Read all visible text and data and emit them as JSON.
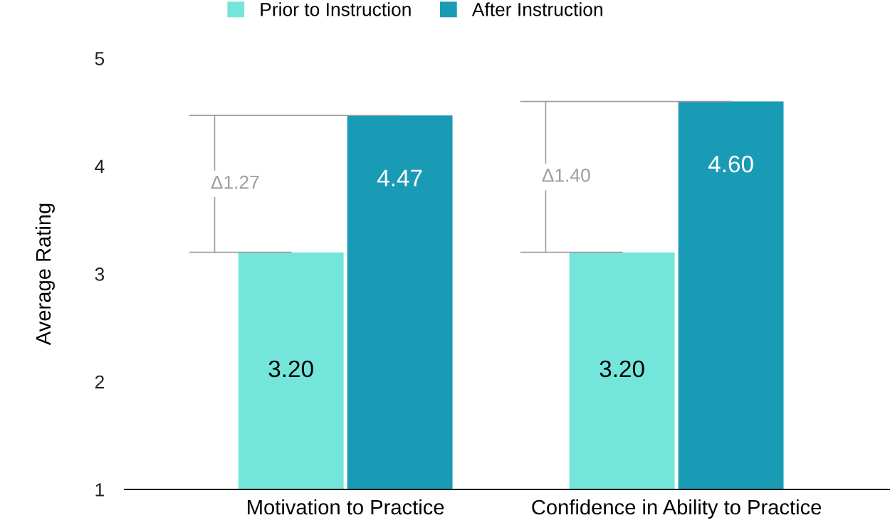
{
  "chart_data": {
    "type": "bar",
    "ylabel": "Average Rating",
    "categories": [
      "Motivation to Practice",
      "Confidence in Ability to Practice"
    ],
    "series": [
      {
        "name": "Prior to Instruction",
        "color": "#74e5da",
        "values": [
          3.2,
          3.2
        ],
        "value_labels": [
          "3.20",
          "3.20"
        ]
      },
      {
        "name": "After Instruction",
        "color": "#1a9bb5",
        "values": [
          4.47,
          4.6
        ],
        "value_labels": [
          "4.47",
          "4.60"
        ]
      }
    ],
    "ylim": [
      1,
      5
    ],
    "yticks": [
      1,
      2,
      3,
      4,
      5
    ],
    "grid": false,
    "legend": "top",
    "annotations": [
      "Δ1.27",
      "Δ1.40"
    ]
  }
}
